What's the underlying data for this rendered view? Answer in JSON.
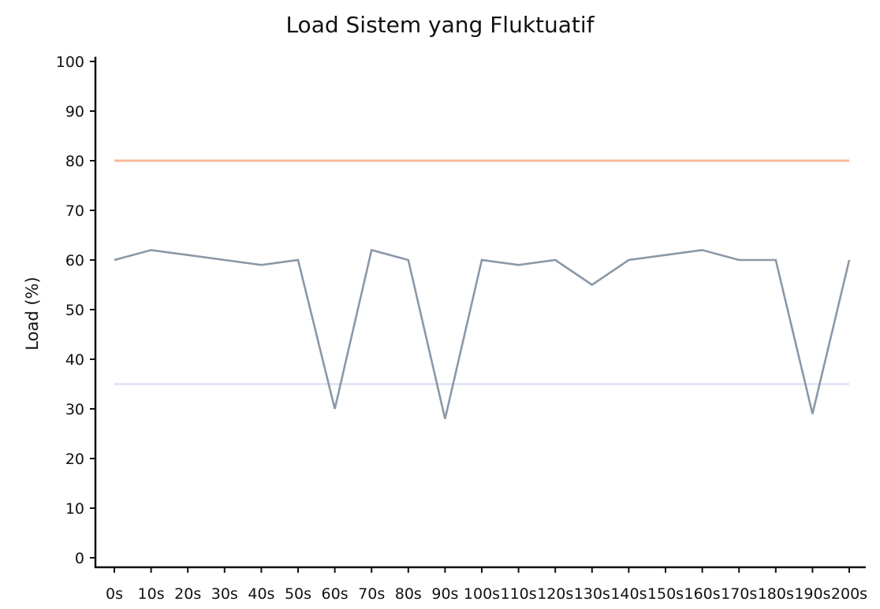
{
  "chart_data": {
    "type": "line",
    "title": "Load Sistem yang Fluktuatif",
    "xlabel": "",
    "ylabel": "Load (%)",
    "categories": [
      "0s",
      "10s",
      "20s",
      "30s",
      "40s",
      "50s",
      "60s",
      "70s",
      "80s",
      "90s",
      "100s",
      "110s",
      "120s",
      "130s",
      "140s",
      "150s",
      "160s",
      "170s",
      "180s",
      "190s",
      "200s"
    ],
    "series": [
      {
        "values": [
          60,
          62,
          61,
          60,
          59,
          60,
          30,
          62,
          60,
          28,
          60,
          59,
          60,
          55,
          60,
          61,
          62,
          60,
          60,
          29,
          60
        ],
        "color": "#8a98a8"
      }
    ],
    "reference_lines": [
      {
        "value": 80,
        "color": "#f7bb9c"
      },
      {
        "value": 35,
        "color": "#e4e5f6"
      }
    ],
    "yticks": [
      0,
      10,
      20,
      30,
      40,
      50,
      60,
      70,
      80,
      90,
      100
    ],
    "ylim": [
      0,
      100
    ],
    "grid": false
  }
}
